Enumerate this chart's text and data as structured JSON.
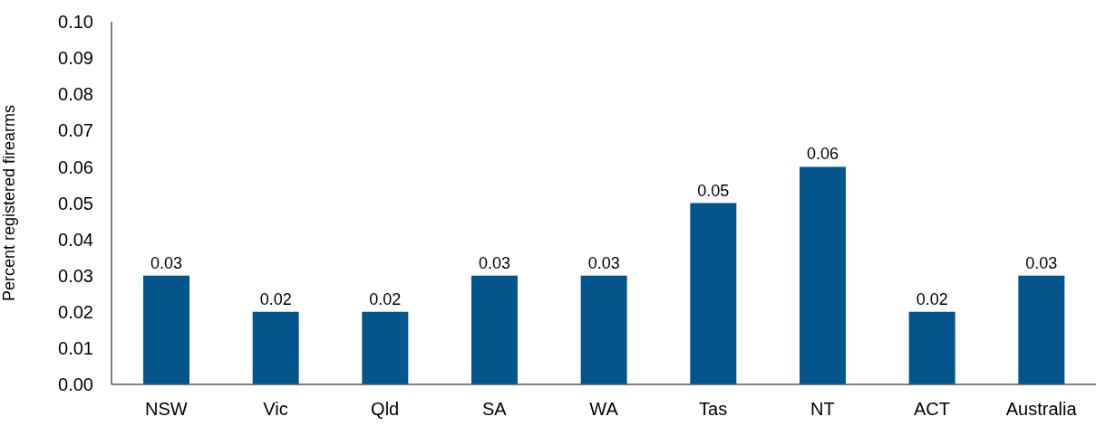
{
  "chart_data": {
    "type": "bar",
    "ylabel": "Percent registered firearms",
    "categories": [
      "NSW",
      "Vic",
      "Qld",
      "SA",
      "WA",
      "Tas",
      "NT",
      "ACT",
      "Australia"
    ],
    "values": [
      0.03,
      0.02,
      0.02,
      0.03,
      0.03,
      0.05,
      0.06,
      0.02,
      0.03
    ],
    "color": "#03558b",
    "data_labels": true,
    "ylim": [
      0,
      0.1
    ],
    "yticks": [
      {
        "value": 0,
        "label": "0.00"
      },
      {
        "value": 0.01,
        "label": "0.01"
      },
      {
        "value": 0.02,
        "label": "0.02"
      },
      {
        "value": 0.03,
        "label": "0.03"
      },
      {
        "value": 0.04,
        "label": "0.04"
      },
      {
        "value": 0.05,
        "label": "0.05"
      },
      {
        "value": 0.06,
        "label": "0.06"
      },
      {
        "value": 0.07,
        "label": "0.07"
      },
      {
        "value": 0.08,
        "label": "0.08"
      },
      {
        "value": 0.09,
        "label": "0.09"
      },
      {
        "value": 0.1,
        "label": "0.10"
      }
    ]
  }
}
